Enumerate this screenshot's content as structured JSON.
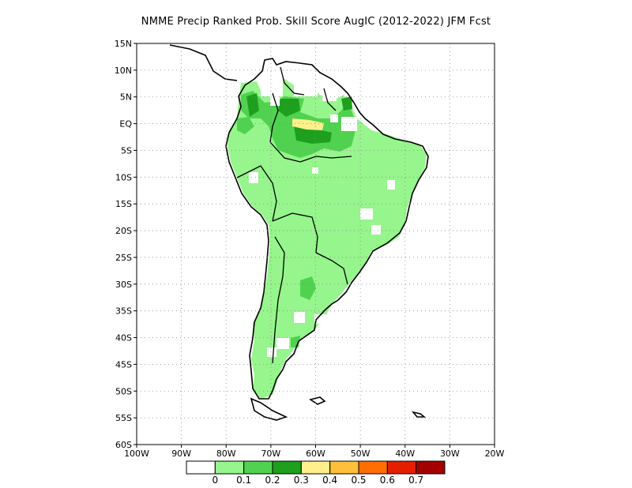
{
  "title": "NMME Precip Ranked Prob. Skill Score AugIC (2012-2022) JFM Fcst",
  "map": {
    "lon_range": [
      -100,
      -20
    ],
    "lat_range": [
      -60,
      15
    ],
    "lat_labels": [
      "15N",
      "10N",
      "5N",
      "EQ",
      "5S",
      "10S",
      "15S",
      "20S",
      "25S",
      "30S",
      "35S",
      "40S",
      "45S",
      "50S",
      "55S",
      "60S"
    ],
    "lon_labels": [
      "100W",
      "90W",
      "80W",
      "70W",
      "60W",
      "50W",
      "40W",
      "30W",
      "20W"
    ],
    "grid": true
  },
  "colorbar": {
    "colors": [
      "#ffffff",
      "#96f58c",
      "#50d250",
      "#1ea01e",
      "#fff08c",
      "#ffc03c",
      "#ff6e00",
      "#e61e00",
      "#a50000"
    ],
    "labels": [
      "0",
      "0.1",
      "0.2",
      "0.3",
      "0.4",
      "0.5",
      "0.6",
      "0.7"
    ]
  }
}
